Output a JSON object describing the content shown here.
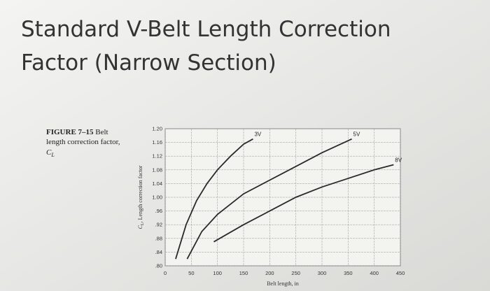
{
  "slide_title_lines": [
    "Standard V-Belt Length Correction",
    "Factor (Narrow Section)"
  ],
  "caption": {
    "figure": "FIGURE 7–15",
    "text_lines": [
      "Belt",
      "length correction factor,"
    ],
    "symbol": "C",
    "subscript": "L"
  },
  "chart_data": {
    "type": "line",
    "xlabel": "Belt length, in",
    "ylabel": {
      "symbol": "C",
      "subscript": "L",
      "text": ", Length correction factor"
    },
    "xlim": [
      0,
      450
    ],
    "xticks": [
      0,
      50,
      100,
      150,
      200,
      250,
      300,
      350,
      400,
      450
    ],
    "ylim": [
      0.8,
      1.2
    ],
    "yticks": [
      {
        "value": 0.8,
        "label": ".80"
      },
      {
        "value": 0.84,
        "label": ".84"
      },
      {
        "value": 0.88,
        "label": ".88"
      },
      {
        "value": 0.92,
        "label": ".92"
      },
      {
        "value": 0.96,
        "label": ".96"
      },
      {
        "value": 1.0,
        "label": "1.00"
      },
      1.04,
      1.08,
      1.12,
      1.16,
      {
        "value": 1.2,
        "label": "1.20"
      }
    ],
    "grid": true,
    "series": [
      {
        "name": "3V",
        "color": "#2a2a2a",
        "x": [
          20,
          40,
          60,
          80,
          100,
          125,
          150,
          168
        ],
        "values": [
          0.82,
          0.92,
          0.99,
          1.04,
          1.08,
          1.12,
          1.155,
          1.17
        ]
      },
      {
        "name": "5V",
        "color": "#2a2a2a",
        "x": [
          42,
          70,
          100,
          150,
          200,
          250,
          300,
          357
        ],
        "values": [
          0.82,
          0.9,
          0.95,
          1.01,
          1.05,
          1.09,
          1.13,
          1.17
        ]
      },
      {
        "name": "8V",
        "color": "#2a2a2a",
        "x": [
          93,
          150,
          200,
          250,
          300,
          350,
          400,
          437
        ],
        "values": [
          0.87,
          0.92,
          0.96,
          1.0,
          1.03,
          1.055,
          1.08,
          1.095
        ]
      }
    ]
  }
}
